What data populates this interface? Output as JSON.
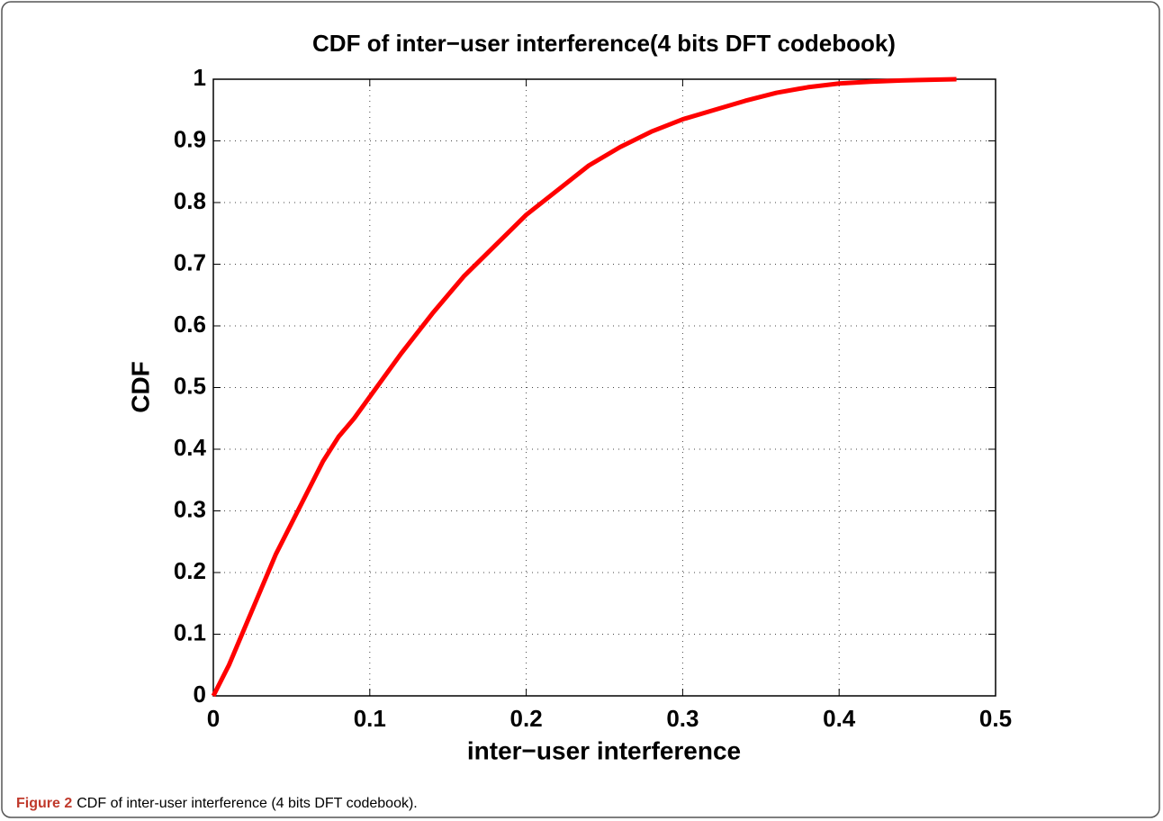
{
  "chart_data": {
    "type": "line",
    "title": "CDF of inter−user interference(4 bits DFT codebook)",
    "xlabel": "inter−user interference",
    "ylabel": "CDF",
    "caption_label": "Figure 2",
    "caption": "CDF of inter-user interference (4 bits DFT codebook).",
    "x": [
      0,
      0.01,
      0.02,
      0.03,
      0.04,
      0.05,
      0.06,
      0.07,
      0.08,
      0.09,
      0.1,
      0.12,
      0.14,
      0.16,
      0.18,
      0.2,
      0.22,
      0.24,
      0.26,
      0.28,
      0.3,
      0.32,
      0.34,
      0.36,
      0.38,
      0.4,
      0.42,
      0.44,
      0.475
    ],
    "series": [
      {
        "color": "#ff0000",
        "values": [
          0,
          0.05,
          0.11,
          0.17,
          0.23,
          0.28,
          0.33,
          0.38,
          0.42,
          0.45,
          0.485,
          0.555,
          0.62,
          0.68,
          0.73,
          0.78,
          0.82,
          0.86,
          0.89,
          0.915,
          0.935,
          0.95,
          0.965,
          0.978,
          0.987,
          0.993,
          0.996,
          0.998,
          1
        ]
      }
    ],
    "xlim": [
      0,
      0.5
    ],
    "xticks": [
      0,
      0.1,
      0.2,
      0.3,
      0.4,
      0.5
    ],
    "ylim": [
      0,
      1
    ],
    "yticks": [
      0,
      0.1,
      0.2,
      0.3,
      0.4,
      0.5,
      0.6,
      0.7,
      0.8,
      0.9,
      1
    ],
    "grid": true
  }
}
